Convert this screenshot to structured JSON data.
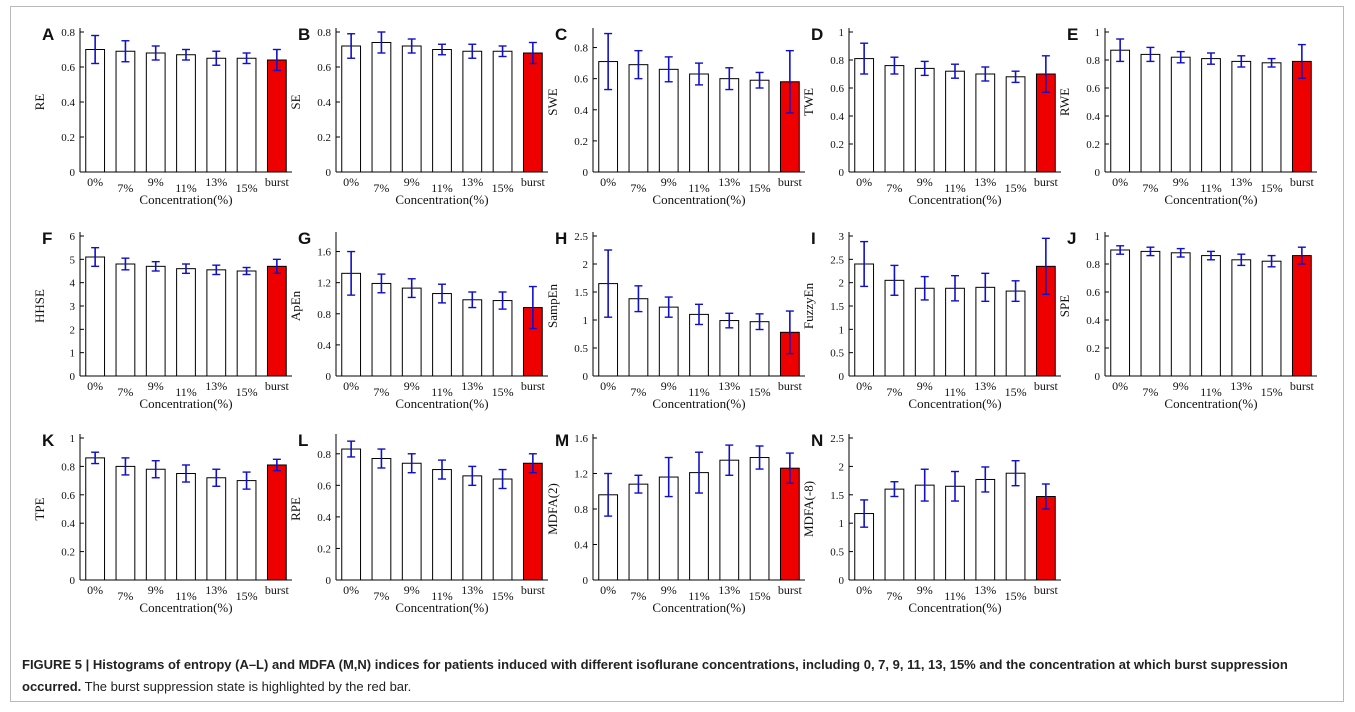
{
  "caption": {
    "bold": "FIGURE 5 | Histograms of entropy (A–L) and MDFA (M,N) indices for patients induced with different isoflurane concentrations, including 0, 7, 9, 11, 13, 15% and the concentration at which burst suppression occurred.",
    "normal": " The burst suppression state is highlighted by the red bar."
  },
  "colors": {
    "bar_fill": "#ffffff",
    "bar_edge": "#000000",
    "highlight": "#ee0000",
    "error_bar": "#1010c8"
  },
  "chart_data": [
    {
      "panel": "A",
      "type": "bar",
      "ylabel": "RE",
      "xlabel": "Concentration(%)",
      "categories": [
        "0%",
        "7%",
        "9%",
        "11%",
        "13%",
        "15%",
        "burst"
      ],
      "ylim": [
        0,
        0.8
      ],
      "yticks": [
        "0",
        "0.2",
        "0.4",
        "0.6",
        "0.8"
      ],
      "yticks_values": [
        0,
        0.2,
        0.4,
        0.6,
        0.8
      ],
      "values": [
        0.7,
        0.69,
        0.68,
        0.67,
        0.65,
        0.65,
        0.64
      ],
      "errors": [
        0.08,
        0.06,
        0.04,
        0.03,
        0.04,
        0.03,
        0.06
      ],
      "highlight_index": 6
    },
    {
      "panel": "B",
      "type": "bar",
      "ylabel": "SE",
      "xlabel": "Concentration(%)",
      "categories": [
        "0%",
        "7%",
        "9%",
        "11%",
        "13%",
        "15%",
        "burst"
      ],
      "ylim": [
        0,
        0.8
      ],
      "yticks": [
        "0",
        "0.2",
        "0.4",
        "0.6",
        "0.8"
      ],
      "yticks_values": [
        0,
        0.2,
        0.4,
        0.6,
        0.8
      ],
      "values": [
        0.72,
        0.74,
        0.72,
        0.7,
        0.69,
        0.69,
        0.68
      ],
      "errors": [
        0.07,
        0.06,
        0.04,
        0.03,
        0.04,
        0.03,
        0.06
      ],
      "highlight_index": 6
    },
    {
      "panel": "C",
      "type": "bar",
      "ylabel": "SWE",
      "xlabel": "Concentration(%)",
      "categories": [
        "0%",
        "7%",
        "9%",
        "11%",
        "13%",
        "15%",
        "burst"
      ],
      "ylim": [
        0,
        0.9
      ],
      "yticks": [
        "0",
        "0.2",
        "0.4",
        "0.6",
        "0.8"
      ],
      "yticks_values": [
        0,
        0.2,
        0.4,
        0.6,
        0.8
      ],
      "values": [
        0.71,
        0.69,
        0.66,
        0.63,
        0.6,
        0.59,
        0.58
      ],
      "errors": [
        0.18,
        0.09,
        0.08,
        0.07,
        0.07,
        0.05,
        0.2
      ],
      "highlight_index": 6
    },
    {
      "panel": "D",
      "type": "bar",
      "ylabel": "TWE",
      "xlabel": "Concentration(%)",
      "categories": [
        "0%",
        "7%",
        "9%",
        "11%",
        "13%",
        "15%",
        "burst"
      ],
      "ylim": [
        0,
        1
      ],
      "yticks": [
        "0",
        "0.2",
        "0.4",
        "0.6",
        "0.8",
        "1"
      ],
      "yticks_values": [
        0,
        0.2,
        0.4,
        0.6,
        0.8,
        1
      ],
      "values": [
        0.81,
        0.76,
        0.74,
        0.72,
        0.7,
        0.68,
        0.7
      ],
      "errors": [
        0.11,
        0.06,
        0.05,
        0.05,
        0.05,
        0.04,
        0.13
      ],
      "highlight_index": 6
    },
    {
      "panel": "E",
      "type": "bar",
      "ylabel": "RWE",
      "xlabel": "Concentration(%)",
      "categories": [
        "0%",
        "7%",
        "9%",
        "11%",
        "13%",
        "15%",
        "burst"
      ],
      "ylim": [
        0,
        1
      ],
      "yticks": [
        "0",
        "0.2",
        "0.4",
        "0.6",
        "0.8",
        "1"
      ],
      "yticks_values": [
        0,
        0.2,
        0.4,
        0.6,
        0.8,
        1
      ],
      "values": [
        0.87,
        0.84,
        0.82,
        0.81,
        0.79,
        0.78,
        0.79
      ],
      "errors": [
        0.08,
        0.05,
        0.04,
        0.04,
        0.04,
        0.03,
        0.12
      ],
      "highlight_index": 6
    },
    {
      "panel": "F",
      "type": "bar",
      "ylabel": "HHSE",
      "xlabel": "Concentration(%)",
      "categories": [
        "0%",
        "7%",
        "9%",
        "11%",
        "13%",
        "15%",
        "burst"
      ],
      "ylim": [
        0,
        6
      ],
      "yticks": [
        "0",
        "1",
        "2",
        "3",
        "4",
        "5",
        "6"
      ],
      "yticks_values": [
        0,
        1,
        2,
        3,
        4,
        5,
        6
      ],
      "values": [
        5.1,
        4.8,
        4.7,
        4.6,
        4.55,
        4.5,
        4.7
      ],
      "errors": [
        0.4,
        0.25,
        0.2,
        0.2,
        0.2,
        0.15,
        0.3
      ],
      "highlight_index": 6
    },
    {
      "panel": "G",
      "type": "bar",
      "ylabel": "ApEn",
      "xlabel": "Concentration(%)",
      "categories": [
        "0%",
        "7%",
        "9%",
        "11%",
        "13%",
        "15%",
        "burst"
      ],
      "ylim": [
        0,
        1.8
      ],
      "yticks": [
        "0",
        "0.4",
        "0.8",
        "1.2",
        "1.6"
      ],
      "yticks_values": [
        0,
        0.4,
        0.8,
        1.2,
        1.6
      ],
      "values": [
        1.32,
        1.19,
        1.13,
        1.06,
        0.98,
        0.97,
        0.88
      ],
      "errors": [
        0.28,
        0.12,
        0.12,
        0.12,
        0.1,
        0.11,
        0.27
      ],
      "highlight_index": 6
    },
    {
      "panel": "H",
      "type": "bar",
      "ylabel": "SampEn",
      "xlabel": "Concentration(%)",
      "categories": [
        "0%",
        "7%",
        "9%",
        "11%",
        "13%",
        "15%",
        "burst"
      ],
      "ylim": [
        0,
        2.5
      ],
      "yticks": [
        "0",
        "0.5",
        "1",
        "1.5",
        "2",
        "2.5"
      ],
      "yticks_values": [
        0,
        0.5,
        1,
        1.5,
        2,
        2.5
      ],
      "values": [
        1.65,
        1.38,
        1.23,
        1.1,
        0.99,
        0.97,
        0.78
      ],
      "errors": [
        0.6,
        0.23,
        0.18,
        0.18,
        0.13,
        0.14,
        0.38
      ],
      "highlight_index": 6
    },
    {
      "panel": "I",
      "type": "bar",
      "ylabel": "FuzzyEn",
      "xlabel": "Concentration(%)",
      "categories": [
        "0%",
        "7%",
        "9%",
        "11%",
        "13%",
        "15%",
        "burst"
      ],
      "ylim": [
        0,
        3
      ],
      "yticks": [
        "0",
        "0.5",
        "1",
        "1.5",
        "2",
        "2.5",
        "3"
      ],
      "yticks_values": [
        0,
        0.5,
        1,
        1.5,
        2,
        2.5,
        3
      ],
      "values": [
        2.4,
        2.05,
        1.88,
        1.88,
        1.9,
        1.82,
        2.35
      ],
      "errors": [
        0.48,
        0.32,
        0.25,
        0.27,
        0.3,
        0.22,
        0.6
      ],
      "highlight_index": 6
    },
    {
      "panel": "J",
      "type": "bar",
      "ylabel": "SPE",
      "xlabel": "Concentration(%)",
      "categories": [
        "0%",
        "7%",
        "9%",
        "11%",
        "13%",
        "15%",
        "burst"
      ],
      "ylim": [
        0,
        1
      ],
      "yticks": [
        "0",
        "0.2",
        "0.4",
        "0.6",
        "0.8",
        "1"
      ],
      "yticks_values": [
        0,
        0.2,
        0.4,
        0.6,
        0.8,
        1
      ],
      "values": [
        0.9,
        0.89,
        0.88,
        0.86,
        0.83,
        0.82,
        0.86
      ],
      "errors": [
        0.03,
        0.03,
        0.03,
        0.03,
        0.04,
        0.04,
        0.06
      ],
      "highlight_index": 6
    },
    {
      "panel": "K",
      "type": "bar",
      "ylabel": "TPE",
      "xlabel": "Concentration(%)",
      "categories": [
        "0%",
        "7%",
        "9%",
        "11%",
        "13%",
        "15%",
        "burst"
      ],
      "ylim": [
        0,
        1
      ],
      "yticks": [
        "0",
        "0.2",
        "0.4",
        "0.6",
        "0.8",
        "1"
      ],
      "yticks_values": [
        0,
        0.2,
        0.4,
        0.6,
        0.8,
        1
      ],
      "values": [
        0.86,
        0.8,
        0.78,
        0.75,
        0.72,
        0.7,
        0.81
      ],
      "errors": [
        0.04,
        0.06,
        0.06,
        0.06,
        0.06,
        0.06,
        0.04
      ],
      "highlight_index": 6
    },
    {
      "panel": "L",
      "type": "bar",
      "ylabel": "RPE",
      "xlabel": "Concentration(%)",
      "categories": [
        "0%",
        "7%",
        "9%",
        "11%",
        "13%",
        "15%",
        "burst"
      ],
      "ylim": [
        0,
        0.9
      ],
      "yticks": [
        "0",
        "0.2",
        "0.4",
        "0.6",
        "0.8"
      ],
      "yticks_values": [
        0,
        0.2,
        0.4,
        0.6,
        0.8
      ],
      "values": [
        0.83,
        0.77,
        0.74,
        0.7,
        0.66,
        0.64,
        0.74
      ],
      "errors": [
        0.05,
        0.06,
        0.06,
        0.06,
        0.06,
        0.06,
        0.06
      ],
      "highlight_index": 6
    },
    {
      "panel": "M",
      "type": "bar",
      "ylabel": "MDFA(2)",
      "xlabel": "Concentration(%)",
      "categories": [
        "0%",
        "7%",
        "9%",
        "11%",
        "13%",
        "15%",
        "burst"
      ],
      "ylim": [
        0,
        1.6
      ],
      "yticks": [
        "0",
        "0.4",
        "0.8",
        "1.2",
        "1.6"
      ],
      "yticks_values": [
        0,
        0.4,
        0.8,
        1.2,
        1.6
      ],
      "values": [
        0.96,
        1.08,
        1.16,
        1.21,
        1.35,
        1.38,
        1.26
      ],
      "errors": [
        0.24,
        0.1,
        0.22,
        0.23,
        0.17,
        0.13,
        0.17
      ],
      "highlight_index": 6
    },
    {
      "panel": "N",
      "type": "bar",
      "ylabel": "MDFA(-8)",
      "xlabel": "Concentration(%)",
      "categories": [
        "0%",
        "7%",
        "9%",
        "11%",
        "13%",
        "15%",
        "burst"
      ],
      "ylim": [
        0,
        2.5
      ],
      "yticks": [
        "0",
        "0.5",
        "1",
        "1.5",
        "2",
        "2.5"
      ],
      "yticks_values": [
        0,
        0.5,
        1,
        1.5,
        2,
        2.5
      ],
      "values": [
        1.17,
        1.6,
        1.67,
        1.65,
        1.77,
        1.88,
        1.47
      ],
      "errors": [
        0.24,
        0.13,
        0.28,
        0.26,
        0.22,
        0.22,
        0.22
      ],
      "highlight_index": 6
    }
  ]
}
